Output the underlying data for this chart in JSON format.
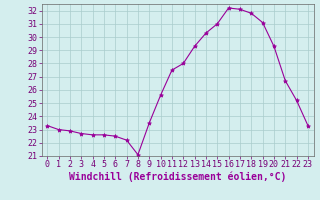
{
  "x": [
    0,
    1,
    2,
    3,
    4,
    5,
    6,
    7,
    8,
    9,
    10,
    11,
    12,
    13,
    14,
    15,
    16,
    17,
    18,
    19,
    20,
    21,
    22,
    23
  ],
  "y": [
    23.3,
    23.0,
    22.9,
    22.7,
    22.6,
    22.6,
    22.5,
    22.2,
    21.1,
    23.5,
    25.6,
    27.5,
    28.0,
    29.3,
    30.3,
    31.0,
    32.2,
    32.1,
    31.8,
    31.1,
    29.3,
    26.7,
    25.2,
    23.3
  ],
  "line_color": "#990099",
  "marker": "*",
  "marker_size": 3,
  "bg_color": "#d4eeee",
  "grid_color": "#aacccc",
  "xlabel": "Windchill (Refroidissement éolien,°C)",
  "xlabel_fontsize": 7,
  "tick_fontsize": 6,
  "ylim": [
    21,
    32.5
  ],
  "yticks": [
    21,
    22,
    23,
    24,
    25,
    26,
    27,
    28,
    29,
    30,
    31,
    32
  ],
  "xlim": [
    -0.5,
    23.5
  ]
}
